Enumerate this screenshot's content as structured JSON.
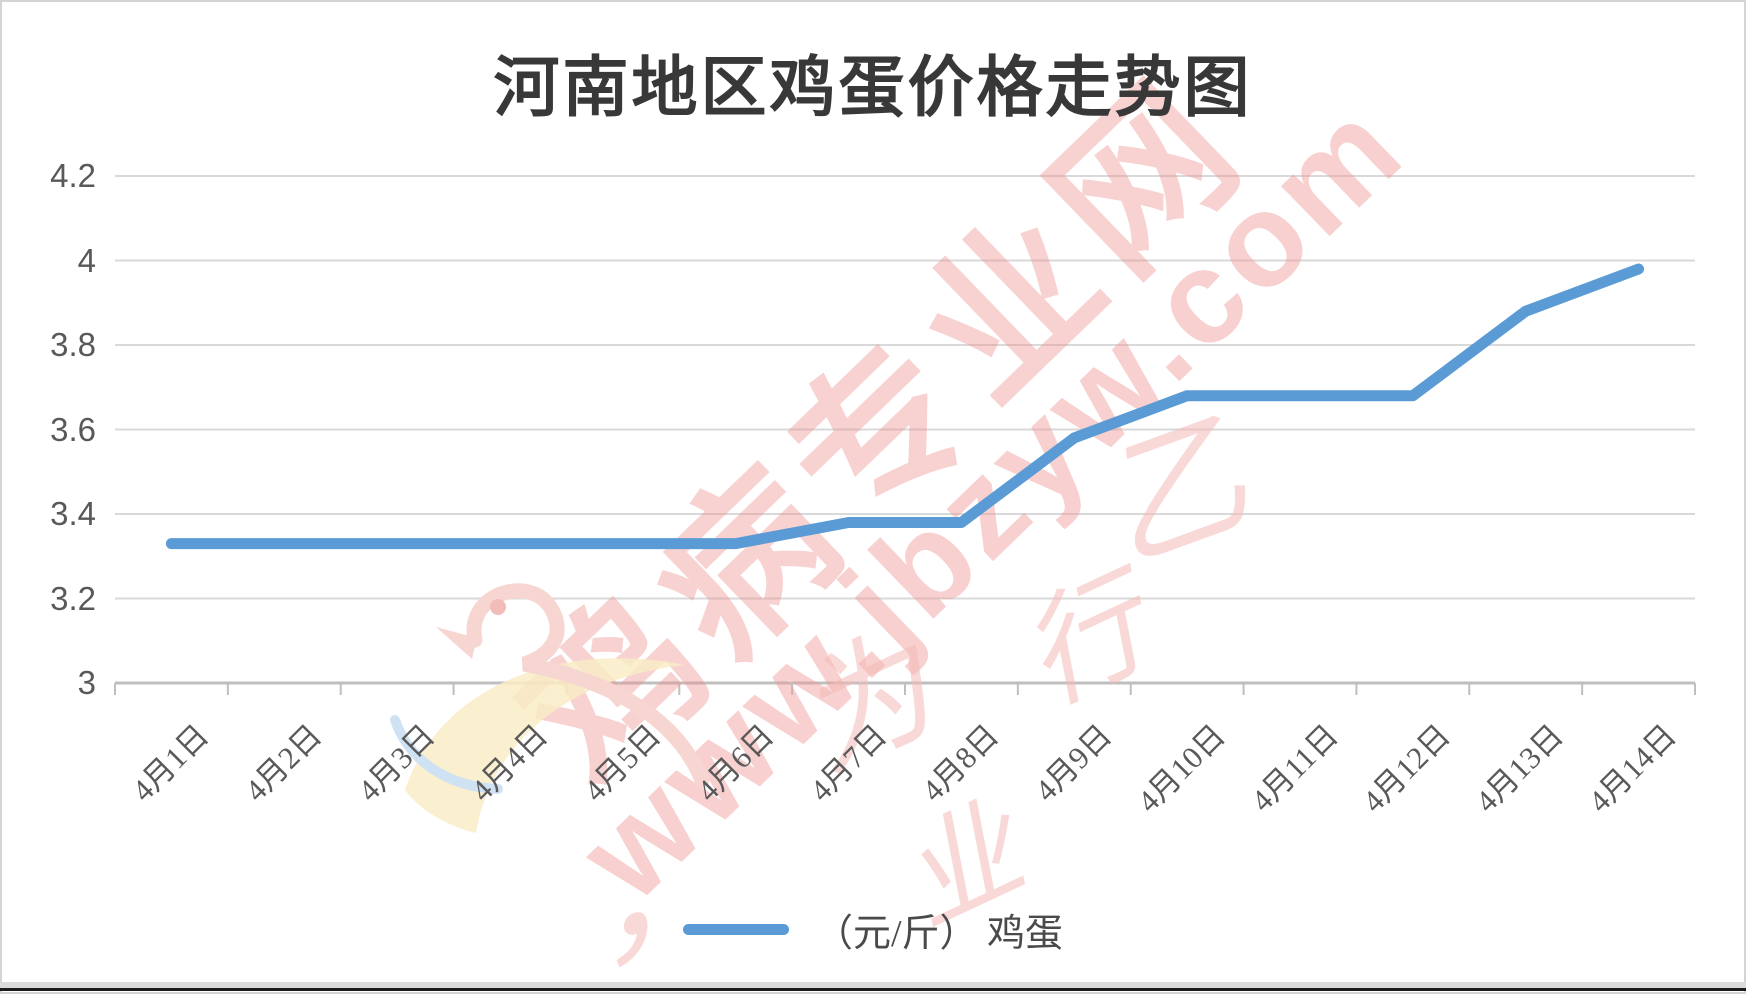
{
  "title": "河南地区鸡蛋价格走势图",
  "chart_data": {
    "type": "line",
    "title": "河南地区鸡蛋价格走势图",
    "categories": [
      "4月1日",
      "4月2日",
      "4月3日",
      "4月4日",
      "4月5日",
      "4月6日",
      "4月7日",
      "4月8日",
      "4月9日",
      "4月10日",
      "4月11日",
      "4月12日",
      "4月13日",
      "4月14日"
    ],
    "series": [
      {
        "name": "（元/斤） 鸡蛋",
        "values": [
          3.33,
          3.33,
          3.33,
          3.33,
          3.33,
          3.33,
          3.38,
          3.38,
          3.58,
          3.68,
          3.68,
          3.68,
          3.88,
          3.98
        ]
      }
    ],
    "ylim": [
      3,
      4.2
    ],
    "yticks": [
      {
        "value": 3,
        "label": "3"
      },
      {
        "value": 3.2,
        "label": "3.2"
      },
      {
        "value": 3.4,
        "label": "3.4"
      },
      {
        "value": 3.6,
        "label": "3.6"
      },
      {
        "value": 3.8,
        "label": "3.8"
      },
      {
        "value": 4,
        "label": "4"
      },
      {
        "value": 4.2,
        "label": "4.2"
      }
    ],
    "grid": "horizontal",
    "legend_position": "bottom",
    "line_color": "#5B9BD5"
  },
  "legend": {
    "swatch_color": "#5B9BD5",
    "label": "（元/斤） 鸡蛋"
  },
  "watermark": {
    "brand": "鸡病专业网",
    "url": "www.jbzyw.com",
    "script_glyphs": [
      "为",
      "行",
      "业",
      "乙",
      "，"
    ]
  },
  "colors": {
    "line": "#5B9BD5",
    "gridline": "#D9D9D9",
    "axis": "#BFBFBF",
    "tick_label": "#595959",
    "title_text": "#383838",
    "background": "#FFFFFF",
    "watermark_pink": "#EC8E8C"
  }
}
